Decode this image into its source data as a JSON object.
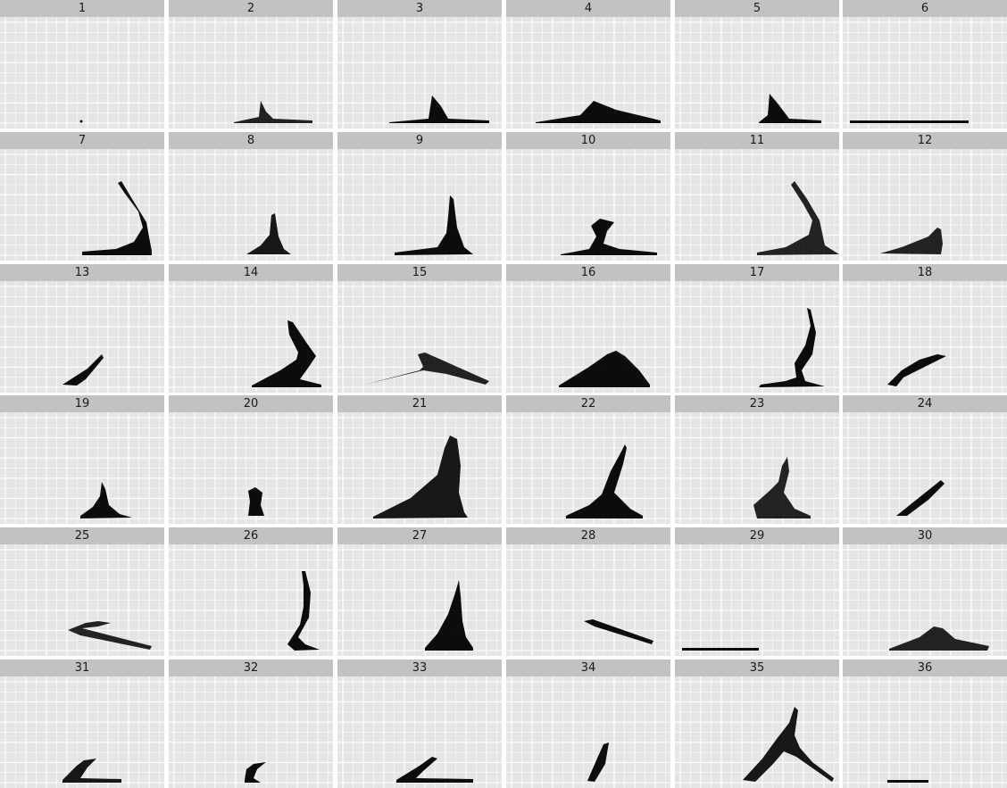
{
  "chart_data": {
    "type": "scatter",
    "facet_labels": [
      "1",
      "2",
      "3",
      "4",
      "5",
      "6",
      "7",
      "8",
      "9",
      "10",
      "11",
      "12",
      "13",
      "14",
      "15",
      "16",
      "17",
      "18",
      "19",
      "20",
      "21",
      "22",
      "23",
      "24",
      "25",
      "26",
      "27",
      "28",
      "29",
      "30",
      "31",
      "32",
      "33",
      "34",
      "35",
      "36"
    ],
    "grid": true,
    "panel_background": "#e5e5e5",
    "strip_background": "#c2c2c2",
    "gridline_color": "#ffffff",
    "point_color": "#000000"
  }
}
